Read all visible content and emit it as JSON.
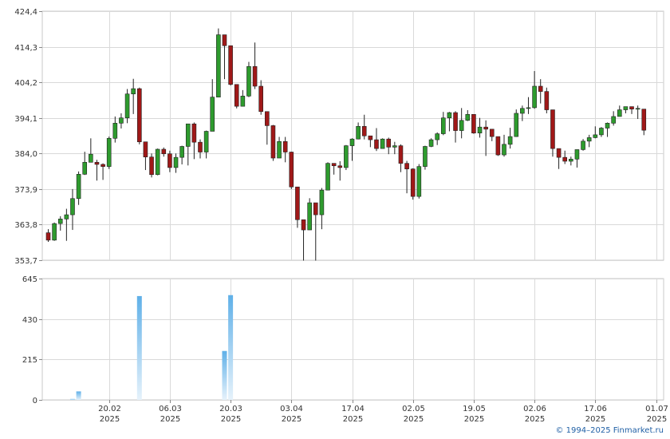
{
  "chart_data": [
    {
      "type": "candlestick",
      "ylim": [
        353.7,
        424.4
      ],
      "y_ticks": [
        "424,4",
        "414,3",
        "404,2",
        "394,1",
        "384,0",
        "373,9",
        "363,8",
        "353,7"
      ],
      "y_tick_values": [
        424.4,
        414.3,
        404.2,
        394.1,
        384.0,
        373.9,
        363.8,
        353.7
      ],
      "x_ticks": [
        {
          "day": "20.02",
          "year": "2025",
          "index": 10
        },
        {
          "day": "06.03",
          "year": "2025",
          "index": 20
        },
        {
          "day": "20.03",
          "year": "2025",
          "index": 30
        },
        {
          "day": "03.04",
          "year": "2025",
          "index": 40
        },
        {
          "day": "17.04",
          "year": "2025",
          "index": 50
        },
        {
          "day": "02.05",
          "year": "2025",
          "index": 60
        },
        {
          "day": "19.05",
          "year": "2025",
          "index": 70
        },
        {
          "day": "02.06",
          "year": "2025",
          "index": 80
        },
        {
          "day": "17.06",
          "year": "2025",
          "index": 90
        },
        {
          "day": "01.07",
          "year": "2025",
          "index": 100
        }
      ],
      "up_color": "#2e9b2e",
      "down_color": "#a01818",
      "candles": [
        [
          361.5,
          359.4,
          362.5,
          358.9
        ],
        [
          359.4,
          364.1,
          364.4,
          359.2
        ],
        [
          364.1,
          365.4,
          366.2,
          362.1
        ],
        [
          365.4,
          366.6,
          368.3,
          359.2
        ],
        [
          366.6,
          371.2,
          373.9,
          362.3
        ],
        [
          371.2,
          378.1,
          378.9,
          369.4
        ],
        [
          378.1,
          381.5,
          384.5,
          377.9
        ],
        [
          381.5,
          383.8,
          388.3,
          381.5
        ],
        [
          381.5,
          380.9,
          382.2,
          376.3
        ],
        [
          380.9,
          380.3,
          381.2,
          376.5
        ],
        [
          380.3,
          388.3,
          388.8,
          379.6
        ],
        [
          388.3,
          392.6,
          394.5,
          387.1
        ],
        [
          392.6,
          394.1,
          395.4,
          391.1
        ],
        [
          394.1,
          400.9,
          402.3,
          392.6
        ],
        [
          400.9,
          402.4,
          405.2,
          395.2
        ],
        [
          402.4,
          387.3,
          402.7,
          386.6
        ],
        [
          387.3,
          383.0,
          387.3,
          379.3
        ],
        [
          383.0,
          378.0,
          384.0,
          377.2
        ],
        [
          378.0,
          385.2,
          385.4,
          377.8
        ],
        [
          385.2,
          383.9,
          385.7,
          383.1
        ],
        [
          383.9,
          380.0,
          384.8,
          378.7
        ],
        [
          380.0,
          382.9,
          384.0,
          378.5
        ],
        [
          382.9,
          386.0,
          386.2,
          380.9
        ],
        [
          386.0,
          392.4,
          392.4,
          380.6
        ],
        [
          392.4,
          387.2,
          392.8,
          382.4
        ],
        [
          387.2,
          384.4,
          388.0,
          382.6
        ],
        [
          384.4,
          390.3,
          390.5,
          382.6
        ],
        [
          390.3,
          400.0,
          405.1,
          390.3
        ],
        [
          400.0,
          417.7,
          419.5,
          400.0
        ],
        [
          417.7,
          414.6,
          416.0,
          405.1
        ],
        [
          414.6,
          403.6,
          404.5,
          403.3
        ],
        [
          403.6,
          397.4,
          399.3,
          396.8
        ],
        [
          397.4,
          400.3,
          402.0,
          397.6
        ],
        [
          400.3,
          408.7,
          410.0,
          400.0
        ],
        [
          408.7,
          403.1,
          415.5,
          402.3
        ],
        [
          403.1,
          395.9,
          404.8,
          395.0
        ],
        [
          395.9,
          391.9,
          393.6,
          386.5
        ],
        [
          391.9,
          382.7,
          392.1,
          381.9
        ],
        [
          382.7,
          387.4,
          388.7,
          386.6
        ],
        [
          387.4,
          384.4,
          388.7,
          381.5
        ],
        [
          384.4,
          374.5,
          384.5,
          373.9
        ],
        [
          374.5,
          365.2,
          367.0,
          362.9
        ],
        [
          365.2,
          362.3,
          364.8,
          353.6
        ],
        [
          362.3,
          370.0,
          371.3,
          363.5
        ],
        [
          370.0,
          366.6,
          367.6,
          353.6
        ],
        [
          366.6,
          373.6,
          374.2,
          362.5
        ],
        [
          373.6,
          381.2,
          381.5,
          374.8
        ],
        [
          381.2,
          380.5,
          380.7,
          378.0
        ],
        [
          380.5,
          380.0,
          381.8,
          376.3
        ],
        [
          380.0,
          386.2,
          386.4,
          379.3
        ],
        [
          386.2,
          388.1,
          388.3,
          381.9
        ],
        [
          388.1,
          391.7,
          392.8,
          388.0
        ],
        [
          391.7,
          389.0,
          395.0,
          388.0
        ],
        [
          389.0,
          387.9,
          388.5,
          385.8
        ],
        [
          387.9,
          385.4,
          391.2,
          384.7
        ],
        [
          385.4,
          388.1,
          388.3,
          385.8
        ],
        [
          388.1,
          385.8,
          388.5,
          383.8
        ],
        [
          385.8,
          386.2,
          387.3,
          383.8
        ],
        [
          386.2,
          381.2,
          386.6,
          378.7
        ],
        [
          381.2,
          379.6,
          381.9,
          372.7
        ],
        [
          379.6,
          371.8,
          379.8,
          370.9
        ],
        [
          371.8,
          380.3,
          381.0,
          371.2
        ],
        [
          380.3,
          386.0,
          386.2,
          379.4
        ],
        [
          386.0,
          387.9,
          388.3,
          385.8
        ],
        [
          387.9,
          389.6,
          390.0,
          386.4
        ],
        [
          389.6,
          394.1,
          395.8,
          389.2
        ],
        [
          394.1,
          395.6,
          395.8,
          390.3
        ],
        [
          395.6,
          390.5,
          396.0,
          387.1
        ],
        [
          390.5,
          393.4,
          396.9,
          388.3
        ],
        [
          393.4,
          395.1,
          396.3,
          393.2
        ],
        [
          395.1,
          389.8,
          394.5,
          389.6
        ],
        [
          389.8,
          391.5,
          394.1,
          388.5
        ],
        [
          391.5,
          390.9,
          393.4,
          383.3
        ],
        [
          390.9,
          388.8,
          390.6,
          387.5
        ],
        [
          388.8,
          383.6,
          388.5,
          383.3
        ],
        [
          383.6,
          386.6,
          389.3,
          383.1
        ],
        [
          386.6,
          388.8,
          391.3,
          385.4
        ],
        [
          388.8,
          395.4,
          396.5,
          388.7
        ],
        [
          395.4,
          396.8,
          397.6,
          393.2
        ],
        [
          396.8,
          397.0,
          400.0,
          395.2
        ],
        [
          397.0,
          403.1,
          407.4,
          396.7
        ],
        [
          403.1,
          401.6,
          405.1,
          398.2
        ],
        [
          401.6,
          396.4,
          402.7,
          395.4
        ],
        [
          396.4,
          385.4,
          396.4,
          383.1
        ],
        [
          385.4,
          382.9,
          385.1,
          379.6
        ],
        [
          382.9,
          381.8,
          384.8,
          381.0
        ],
        [
          381.8,
          382.4,
          383.1,
          380.6
        ],
        [
          382.4,
          385.1,
          385.1,
          380.0
        ],
        [
          385.1,
          387.5,
          388.1,
          384.8
        ],
        [
          387.5,
          388.5,
          389.3,
          385.8
        ],
        [
          388.5,
          389.3,
          391.7,
          388.3
        ],
        [
          389.3,
          391.2,
          391.5,
          388.7
        ],
        [
          391.2,
          392.6,
          392.8,
          388.7
        ],
        [
          392.6,
          394.5,
          396.0,
          391.9
        ],
        [
          394.5,
          396.4,
          397.6,
          394.9
        ],
        [
          396.4,
          397.3,
          397.1,
          395.4
        ],
        [
          397.3,
          396.6,
          397.3,
          395.2
        ],
        [
          396.6,
          396.8,
          397.6,
          393.8
        ],
        [
          396.6,
          390.6,
          395.6,
          389.2
        ]
      ]
    },
    {
      "type": "bar",
      "ylim": [
        0,
        645
      ],
      "y_ticks": [
        "645",
        "430",
        "215",
        "0"
      ],
      "y_tick_values": [
        645,
        430,
        215,
        0
      ],
      "bar_color": "#5fb0e8",
      "bars": [
        {
          "index": 4,
          "value": 5
        },
        {
          "index": 5,
          "value": 45
        },
        {
          "index": 15,
          "value": 552
        },
        {
          "index": 29,
          "value": 260
        },
        {
          "index": 30,
          "value": 557
        }
      ]
    }
  ],
  "footer": {
    "copyright": "© 1994–2025 Finmarket.ru"
  }
}
